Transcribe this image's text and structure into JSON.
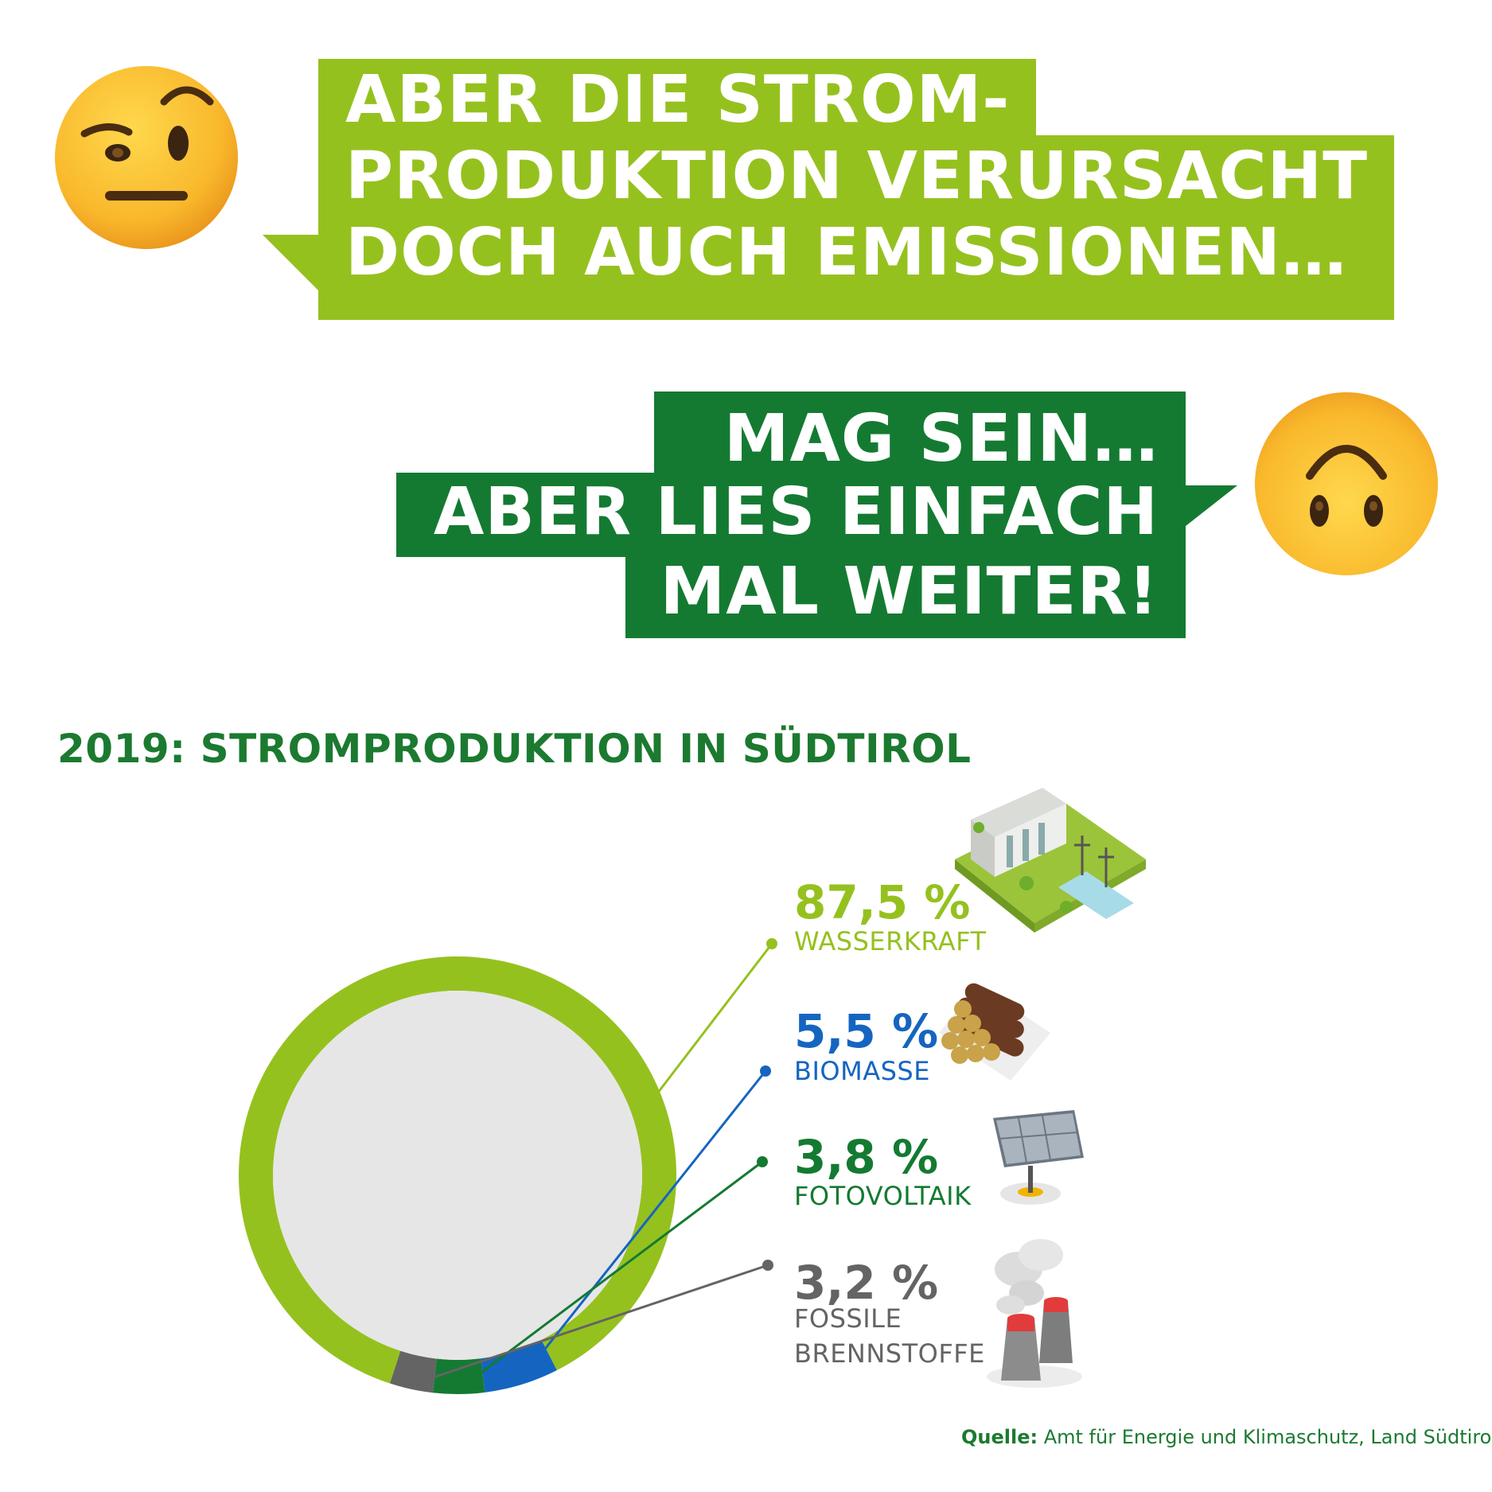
{
  "bubble1": {
    "lines": [
      "ABER DIE STROM-",
      "PRODUKTION VERURSACHT",
      "DOCH AUCH EMISSIONEN…"
    ]
  },
  "bubble2": {
    "lines": [
      "MAG SEIN…",
      "ABER LIES EINFACH",
      "MAL WEITER!"
    ]
  },
  "colors": {
    "light_green": "#95c11f",
    "dark_green": "#147a32",
    "blue": "#1565c0",
    "grey": "#646464",
    "inner": "#e6e6e6"
  },
  "chart_data": {
    "type": "pie",
    "title": "2019: STROMPRODUKTION IN SÜDTIROL",
    "slices": [
      {
        "label": "WASSERKRAFT",
        "value": 87.5,
        "value_label": "87,5 %",
        "color": "#95c11f",
        "icon": "hydro-dam-icon"
      },
      {
        "label": "BIOMASSE",
        "value": 5.5,
        "value_label": "5,5 %",
        "color": "#1565c0",
        "icon": "log-pile-icon"
      },
      {
        "label": "FOTOVOLTAIK",
        "value": 3.8,
        "value_label": "3,8 %",
        "color": "#147a32",
        "icon": "solar-panel-icon"
      },
      {
        "label": "FOSSILE BRENNSTOFFE",
        "label_lines": [
          "FOSSILE",
          "BRENNSTOFFE"
        ],
        "value": 3.2,
        "value_label": "3,2 %",
        "color": "#646464",
        "icon": "cooling-tower-icon"
      }
    ]
  },
  "source": {
    "prefix": "Quelle:",
    "text": " Amt für Energie und Klimaschutz, Land Südtirol"
  }
}
